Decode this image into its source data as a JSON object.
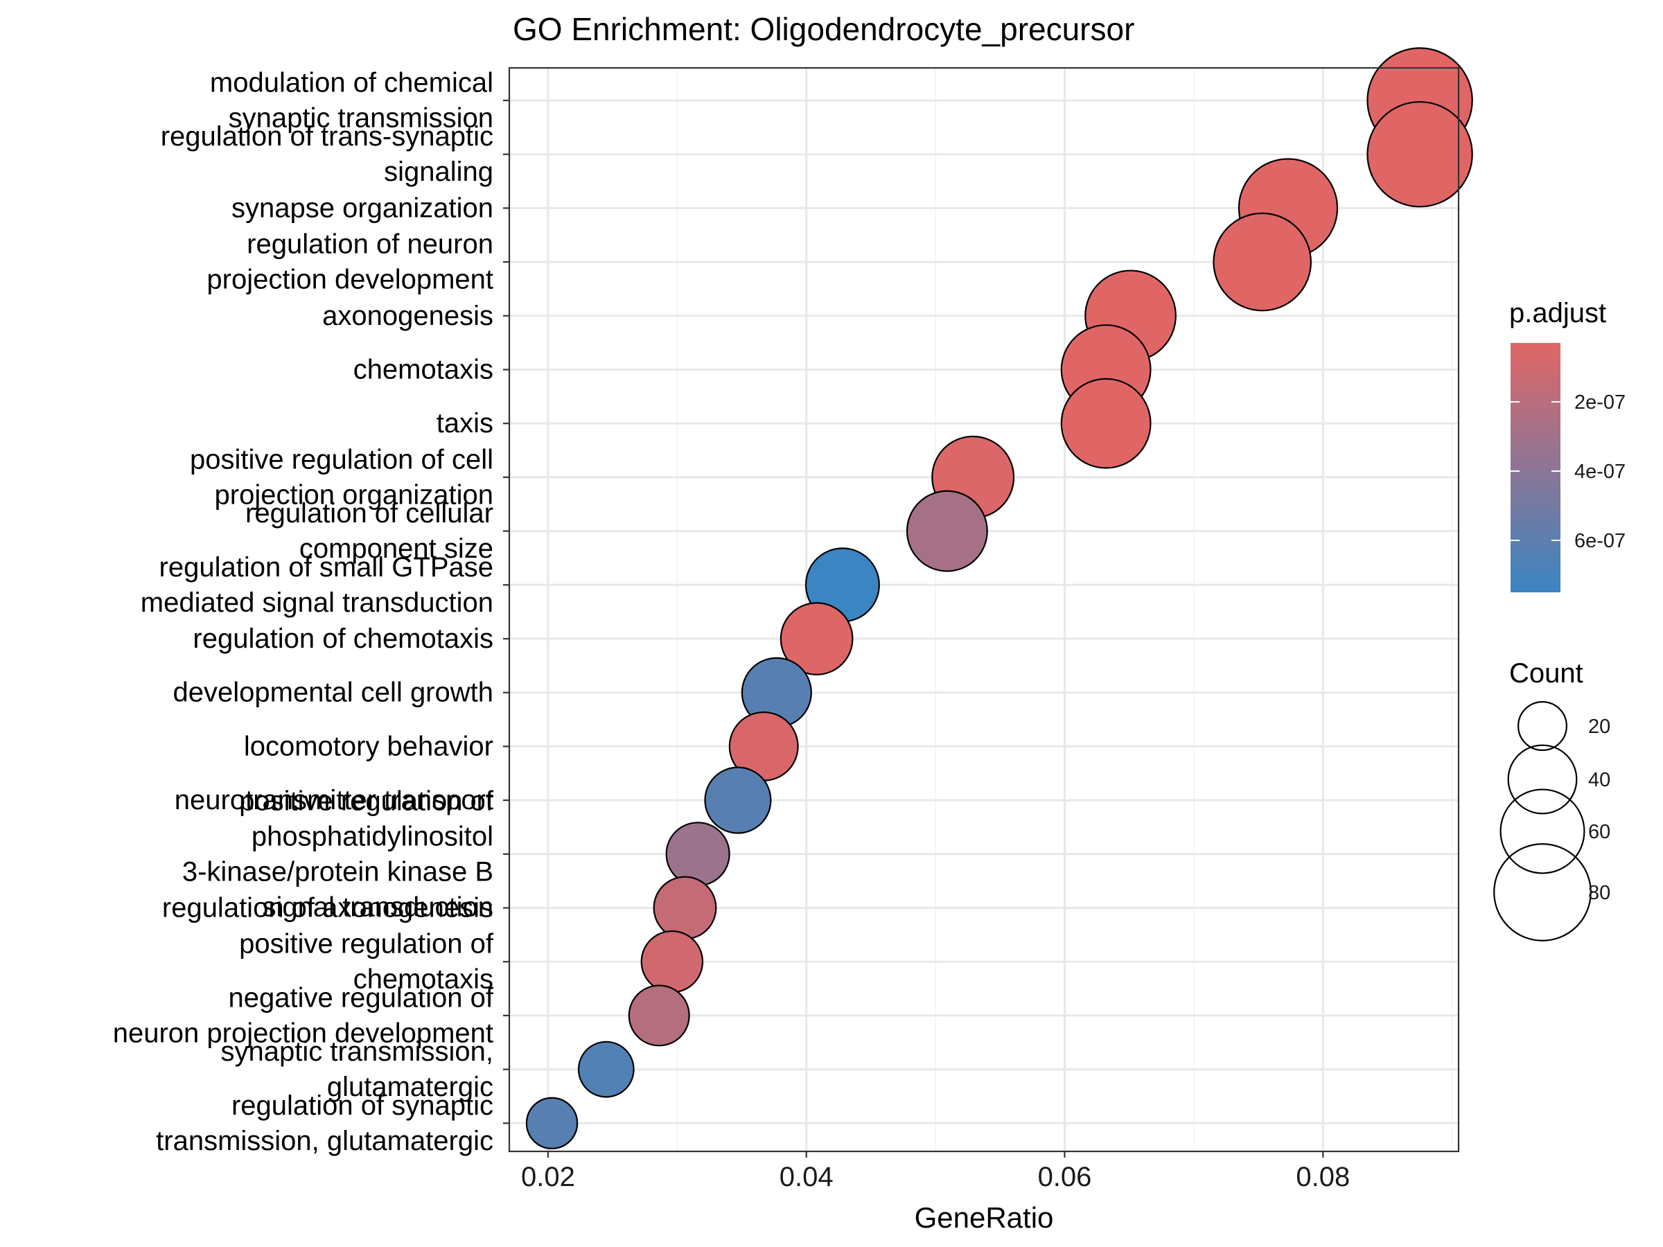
{
  "chart_data": {
    "type": "scatter",
    "title": "GO Enrichment: Oligodendrocyte_precursor",
    "xlabel": "GeneRatio",
    "ylabel": "",
    "xlim": [
      0.017,
      0.0905
    ],
    "xticks": [
      0.02,
      0.04,
      0.06,
      0.08
    ],
    "xtick_labels": [
      "0.02",
      "0.04",
      "0.06",
      "0.08"
    ],
    "grid": true,
    "legend_position": "right",
    "colors": {
      "low_padj": "#e06666",
      "high_padj": "#3a85c2"
    },
    "color_legend": {
      "title": "p.adjust",
      "range": [
        3e-08,
        7.5e-07
      ],
      "ticks": [
        2e-07,
        4e-07,
        6e-07
      ],
      "tick_labels": [
        "2e-07",
        "4e-07",
        "6e-07"
      ]
    },
    "size_legend": {
      "title": "Count",
      "values": [
        20,
        40,
        60,
        80
      ],
      "labels": [
        "20",
        "40",
        "60",
        "80"
      ]
    },
    "points": [
      {
        "label": [
          "modulation of chemical",
          "synaptic transmission"
        ],
        "x": 0.0875,
        "count": 94,
        "p_adjust": 3e-08
      },
      {
        "label": [
          "regulation of trans-synaptic",
          "signaling"
        ],
        "x": 0.0875,
        "count": 94,
        "p_adjust": 3e-08
      },
      {
        "label": [
          "synapse organization"
        ],
        "x": 0.0773,
        "count": 83,
        "p_adjust": 3e-08
      },
      {
        "label": [
          "regulation of neuron",
          "projection development"
        ],
        "x": 0.0753,
        "count": 81,
        "p_adjust": 3e-08
      },
      {
        "label": [
          "axonogenesis"
        ],
        "x": 0.0651,
        "count": 70,
        "p_adjust": 3e-08
      },
      {
        "label": [
          "chemotaxis"
        ],
        "x": 0.0632,
        "count": 68,
        "p_adjust": 3e-08
      },
      {
        "label": [
          "taxis"
        ],
        "x": 0.0632,
        "count": 68,
        "p_adjust": 3e-08
      },
      {
        "label": [
          "positive regulation of cell",
          "projection organization"
        ],
        "x": 0.0529,
        "count": 57,
        "p_adjust": 5e-08
      },
      {
        "label": [
          "regulation of cellular",
          "component size"
        ],
        "x": 0.0509,
        "count": 55,
        "p_adjust": 2.8e-07
      },
      {
        "label": [
          "regulation of small GTPase",
          "mediated signal transduction"
        ],
        "x": 0.0428,
        "count": 46,
        "p_adjust": 7.5e-07
      },
      {
        "label": [
          "regulation of chemotaxis"
        ],
        "x": 0.0408,
        "count": 44,
        "p_adjust": 4e-08
      },
      {
        "label": [
          "developmental cell growth"
        ],
        "x": 0.0377,
        "count": 41,
        "p_adjust": 6.2e-07
      },
      {
        "label": [
          "locomotory behavior"
        ],
        "x": 0.0367,
        "count": 40,
        "p_adjust": 6e-08
      },
      {
        "label": [
          "neurotransmitter transport"
        ],
        "x": 0.0347,
        "count": 37,
        "p_adjust": 6.2e-07
      },
      {
        "label": [
          "positive regulation of",
          "phosphatidylinositol",
          "3-kinase/protein kinase B",
          "signal transduction"
        ],
        "x": 0.0316,
        "count": 34,
        "p_adjust": 3.3e-07
      },
      {
        "label": [
          "regulation of axonogenesis"
        ],
        "x": 0.0306,
        "count": 33,
        "p_adjust": 1.5e-07
      },
      {
        "label": [
          "positive regulation of",
          "chemotaxis"
        ],
        "x": 0.0296,
        "count": 32,
        "p_adjust": 1e-07
      },
      {
        "label": [
          "negative regulation of",
          "neuron projection development"
        ],
        "x": 0.0286,
        "count": 31,
        "p_adjust": 2.2e-07
      },
      {
        "label": [
          "synaptic transmission,",
          "glutamatergic"
        ],
        "x": 0.0245,
        "count": 26,
        "p_adjust": 6.5e-07
      },
      {
        "label": [
          "regulation of synaptic",
          "transmission, glutamatergic"
        ],
        "x": 0.0203,
        "count": 22,
        "p_adjust": 6.2e-07
      }
    ]
  }
}
